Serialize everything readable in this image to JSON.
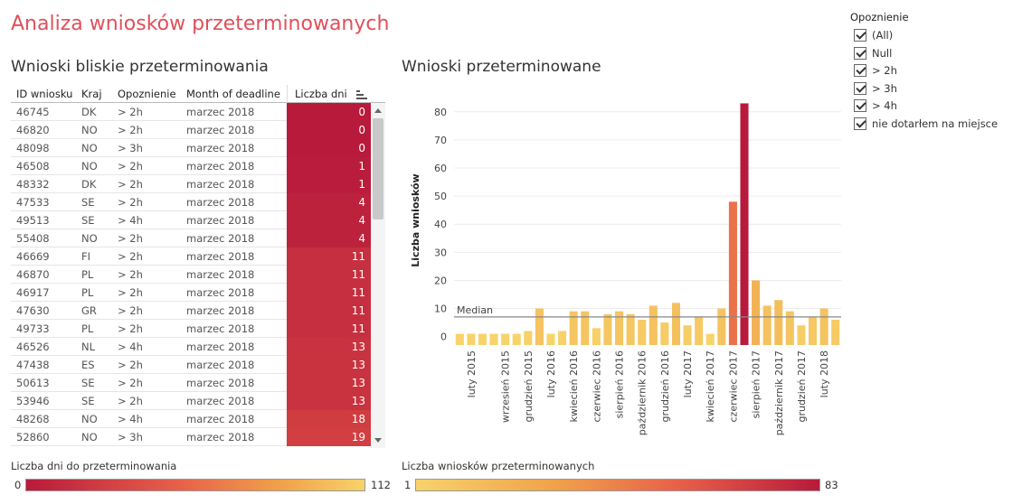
{
  "page_title": "Analiza wniosków przeterminowanych",
  "left": {
    "title": "Wnioski bliskie przeterminowania",
    "columns": [
      "ID wniosku",
      "Kraj",
      "Opoznienie",
      "Month of deadline",
      "Liczba dni"
    ],
    "rows": [
      {
        "id": "46745",
        "kraj": "DK",
        "op": "> 2h",
        "month": "marzec 2018",
        "days": 0
      },
      {
        "id": "46820",
        "kraj": "NO",
        "op": "> 2h",
        "month": "marzec 2018",
        "days": 0
      },
      {
        "id": "48098",
        "kraj": "NO",
        "op": "> 3h",
        "month": "marzec 2018",
        "days": 0
      },
      {
        "id": "46508",
        "kraj": "NO",
        "op": "> 2h",
        "month": "marzec 2018",
        "days": 1
      },
      {
        "id": "48332",
        "kraj": "DK",
        "op": "> 2h",
        "month": "marzec 2018",
        "days": 1
      },
      {
        "id": "47533",
        "kraj": "SE",
        "op": "> 2h",
        "month": "marzec 2018",
        "days": 4
      },
      {
        "id": "49513",
        "kraj": "SE",
        "op": "> 4h",
        "month": "marzec 2018",
        "days": 4
      },
      {
        "id": "55408",
        "kraj": "NO",
        "op": "> 2h",
        "month": "marzec 2018",
        "days": 4
      },
      {
        "id": "46669",
        "kraj": "FI",
        "op": "> 2h",
        "month": "marzec 2018",
        "days": 11
      },
      {
        "id": "46870",
        "kraj": "PL",
        "op": "> 2h",
        "month": "marzec 2018",
        "days": 11
      },
      {
        "id": "46917",
        "kraj": "PL",
        "op": "> 2h",
        "month": "marzec 2018",
        "days": 11
      },
      {
        "id": "47630",
        "kraj": "GR",
        "op": "> 2h",
        "month": "marzec 2018",
        "days": 11
      },
      {
        "id": "49733",
        "kraj": "PL",
        "op": "> 2h",
        "month": "marzec 2018",
        "days": 11
      },
      {
        "id": "46526",
        "kraj": "NL",
        "op": "> 4h",
        "month": "marzec 2018",
        "days": 13
      },
      {
        "id": "47438",
        "kraj": "ES",
        "op": "> 2h",
        "month": "marzec 2018",
        "days": 13
      },
      {
        "id": "50613",
        "kraj": "SE",
        "op": "> 2h",
        "month": "marzec 2018",
        "days": 13
      },
      {
        "id": "53946",
        "kraj": "SE",
        "op": "> 2h",
        "month": "marzec 2018",
        "days": 13
      },
      {
        "id": "48268",
        "kraj": "NO",
        "op": "> 4h",
        "month": "marzec 2018",
        "days": 18
      },
      {
        "id": "52860",
        "kraj": "NO",
        "op": "> 3h",
        "month": "marzec 2018",
        "days": 19
      }
    ],
    "legend": {
      "title": "Liczba dni do przeterminowania",
      "min": "0",
      "max": "112"
    }
  },
  "right": {
    "title": "Wnioski przeterminowane",
    "legend": {
      "title": "Liczba wniosków przeterminowanych",
      "min": "1",
      "max": "83"
    }
  },
  "filter": {
    "title": "Opoznienie",
    "options": [
      "(All)",
      "Null",
      "> 2h",
      "> 3h",
      "> 4h",
      "nie dotarłem na miejsce"
    ]
  },
  "colors": {
    "title": "#e0505a",
    "dark_red": "#b81a3c",
    "orange": "#f0a14a",
    "yellow": "#f7d36a",
    "median_line": "#888888"
  },
  "chart_data": {
    "type": "bar",
    "title": "Wnioski przeterminowane",
    "ylabel": "Liczba wniosków",
    "xlabel": "",
    "ylim": [
      -3,
      87
    ],
    "yticks": [
      0,
      10,
      20,
      30,
      40,
      50,
      60,
      70,
      80
    ],
    "median": 7,
    "median_label": "Median",
    "values": [
      1,
      1,
      1,
      1,
      1,
      1,
      2,
      10,
      1,
      2,
      9,
      9,
      3,
      8,
      9,
      8,
      6,
      11,
      5,
      12,
      4,
      7,
      1,
      10,
      48,
      83,
      20,
      11,
      13,
      9,
      4,
      7,
      10,
      6
    ],
    "tick_labels": [
      {
        "index": 1,
        "label": "luty 2015"
      },
      {
        "index": 4,
        "label": "wrzesień 2015"
      },
      {
        "index": 6,
        "label": "grudzień 2015"
      },
      {
        "index": 8,
        "label": "luty 2016"
      },
      {
        "index": 10,
        "label": "kwiecień 2016"
      },
      {
        "index": 12,
        "label": "czerwiec 2016"
      },
      {
        "index": 14,
        "label": "sierpień 2016"
      },
      {
        "index": 16,
        "label": "październik 2016"
      },
      {
        "index": 18,
        "label": "grudzień 2016"
      },
      {
        "index": 20,
        "label": "luty 2017"
      },
      {
        "index": 22,
        "label": "kwiecień 2017"
      },
      {
        "index": 24,
        "label": "czerwiec 2017"
      },
      {
        "index": 26,
        "label": "sierpień 2017"
      },
      {
        "index": 28,
        "label": "październik 2017"
      },
      {
        "index": 30,
        "label": "grudzień 2017"
      },
      {
        "index": 32,
        "label": "luty 2018"
      }
    ]
  }
}
